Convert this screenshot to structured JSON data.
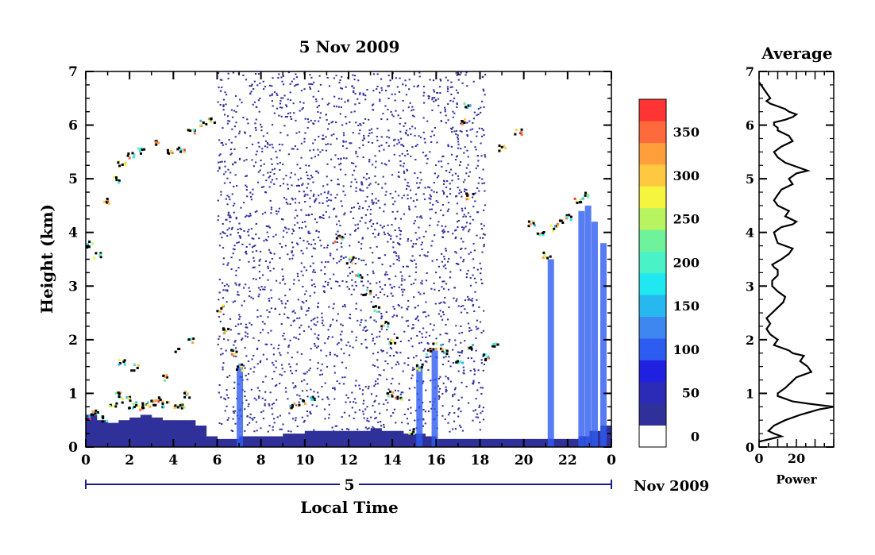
{
  "chart_data": [
    {
      "type": "heatmap",
      "title": "5 Nov 2009",
      "xlabel": "Local Time",
      "ylabel": "Height (km)",
      "xlim": [
        0,
        24
      ],
      "ylim": [
        0,
        7
      ],
      "x_ticks": [
        "0",
        "2",
        "4",
        "6",
        "8",
        "10",
        "12",
        "14",
        "16",
        "18",
        "20",
        "22",
        "0"
      ],
      "y_ticks": [
        "0",
        "1",
        "2",
        "3",
        "4",
        "5",
        "6",
        "7"
      ],
      "date_axis": {
        "day_label": "5",
        "month_label": "Nov 2009"
      },
      "colorbar": {
        "levels": [
          0,
          25,
          50,
          75,
          100,
          125,
          150,
          175,
          200,
          225,
          250,
          275,
          300,
          325,
          350,
          375
        ],
        "colors": [
          "#ffffff",
          "#30309a",
          "#2b2bb8",
          "#2020e0",
          "#2e5cf0",
          "#3f87f0",
          "#27b8ef",
          "#1fe8f0",
          "#4af2c8",
          "#6ff29c",
          "#b8f45f",
          "#f5f540",
          "#ffc840",
          "#ff9f3c",
          "#ff6a3c",
          "#ff3535"
        ],
        "tick_labels": [
          "0",
          "50",
          "100",
          "150",
          "200",
          "250",
          "300",
          "350"
        ],
        "tick_values": [
          0,
          50,
          100,
          150,
          200,
          250,
          300,
          350
        ]
      },
      "layers": [
        {
          "name": "boundary-layer-haze",
          "time": [
            0,
            0.5,
            1,
            1.5,
            2,
            2.5,
            3,
            3.5,
            4,
            4.5,
            5,
            5.5,
            6,
            6.5,
            7,
            7.5,
            8,
            8.5,
            9,
            9.5,
            10,
            10.5,
            11,
            11.5,
            12,
            12.5,
            13,
            13.5,
            14,
            14.5,
            15,
            15.5,
            16,
            16.5,
            17,
            17.5,
            18,
            18.5,
            19,
            19.5,
            20,
            20.5,
            21,
            21.5,
            22,
            22.5,
            23,
            23.5,
            24
          ],
          "height": [
            0.6,
            0.5,
            0.45,
            0.5,
            0.55,
            0.6,
            0.55,
            0.5,
            0.5,
            0.5,
            0.4,
            0.2,
            0.15,
            0.15,
            0.2,
            0.2,
            0.2,
            0.2,
            0.25,
            0.25,
            0.3,
            0.3,
            0.3,
            0.3,
            0.3,
            0.3,
            0.35,
            0.3,
            0.3,
            0.25,
            0.25,
            0.2,
            0.15,
            0.15,
            0.15,
            0.15,
            0.15,
            0.15,
            0.15,
            0.15,
            0.15,
            0.15,
            0.15,
            0.15,
            0.15,
            0.2,
            0.3,
            0.4,
            0.4
          ]
        },
        {
          "name": "lower-cloud",
          "points": [
            [
              0.1,
              0.6
            ],
            [
              0.4,
              0.65
            ],
            [
              0.8,
              0.55
            ],
            [
              1.2,
              0.8
            ],
            [
              1.5,
              1.0
            ],
            [
              1.8,
              0.9
            ],
            [
              2.1,
              0.8
            ],
            [
              2.4,
              0.75
            ],
            [
              2.7,
              0.8
            ],
            [
              3.0,
              0.85
            ],
            [
              3.3,
              0.9
            ],
            [
              3.6,
              0.8
            ],
            [
              4.0,
              0.75
            ],
            [
              4.3,
              0.8
            ],
            [
              4.6,
              1.0
            ],
            [
              1.6,
              1.6
            ],
            [
              2.2,
              1.5
            ],
            [
              3.6,
              1.3
            ],
            [
              4.2,
              1.8
            ],
            [
              4.8,
              2.0
            ],
            [
              6.1,
              2.6
            ],
            [
              6.4,
              2.2
            ],
            [
              6.7,
              1.8
            ],
            [
              7.0,
              1.5
            ],
            [
              9.3,
              0.8
            ],
            [
              9.8,
              0.85
            ],
            [
              10.3,
              0.9
            ],
            [
              13.8,
              1.0
            ],
            [
              14.2,
              0.9
            ],
            [
              14.8,
              0.3
            ],
            [
              15.2,
              1.5
            ],
            [
              15.6,
              1.8
            ],
            [
              16.0,
              1.9
            ],
            [
              16.4,
              1.8
            ],
            [
              17.0,
              1.6
            ],
            [
              17.5,
              1.9
            ],
            [
              18.2,
              1.7
            ],
            [
              18.6,
              1.9
            ]
          ]
        },
        {
          "name": "mid-cloud",
          "points": [
            [
              0.1,
              3.8
            ],
            [
              0.5,
              3.6
            ],
            [
              0.9,
              4.6
            ],
            [
              1.3,
              5.0
            ],
            [
              1.6,
              5.3
            ],
            [
              2.0,
              5.45
            ],
            [
              2.5,
              5.55
            ],
            [
              3.2,
              5.7
            ],
            [
              3.8,
              5.55
            ],
            [
              4.3,
              5.55
            ],
            [
              4.8,
              5.9
            ],
            [
              5.3,
              6.05
            ],
            [
              5.7,
              6.1
            ],
            [
              11.5,
              3.9
            ],
            [
              12.0,
              3.5
            ],
            [
              12.4,
              3.2
            ],
            [
              12.8,
              2.9
            ],
            [
              13.2,
              2.6
            ],
            [
              13.6,
              2.3
            ],
            [
              14.0,
              2.0
            ],
            [
              17.1,
              6.1
            ],
            [
              17.4,
              6.4
            ],
            [
              17.5,
              4.7
            ],
            [
              19.0,
              5.6
            ],
            [
              19.7,
              5.9
            ],
            [
              20.3,
              4.2
            ],
            [
              20.7,
              4.0
            ],
            [
              21.0,
              3.6
            ],
            [
              21.3,
              4.1
            ],
            [
              21.6,
              4.2
            ],
            [
              22.0,
              4.3
            ],
            [
              22.4,
              4.6
            ],
            [
              22.8,
              4.7
            ]
          ]
        }
      ]
    },
    {
      "type": "line",
      "title": "Average",
      "xlabel": "Power",
      "ylabel": "",
      "xlim": [
        0,
        40
      ],
      "ylim": [
        0,
        7
      ],
      "x_ticks": [
        "0",
        "20"
      ],
      "x_tick_values": [
        0,
        20
      ],
      "y_ticks": [
        "0",
        "1",
        "2",
        "3",
        "4",
        "5",
        "6",
        "7"
      ],
      "series": [
        {
          "x": [
            0,
            6,
            12,
            8,
            5,
            8,
            14,
            22,
            32,
            40,
            28,
            18,
            14,
            10,
            10,
            14,
            17,
            20,
            24,
            28,
            26,
            22,
            24,
            18,
            16,
            12,
            8,
            10,
            6,
            4,
            6,
            4,
            7,
            10,
            13,
            14,
            10,
            7,
            7,
            10,
            10,
            8,
            7,
            12,
            16,
            18,
            14,
            10,
            9,
            8,
            10,
            12,
            18,
            20,
            14,
            16,
            10,
            8,
            10,
            12,
            18,
            16,
            20,
            26,
            22,
            14,
            10,
            8,
            12,
            18,
            16,
            10,
            10,
            8,
            8,
            14,
            18,
            20,
            16,
            14,
            10,
            6,
            4,
            6,
            4,
            2,
            0
          ],
          "y": [
            0.1,
            0.15,
            0.2,
            0.25,
            0.3,
            0.4,
            0.5,
            0.6,
            0.7,
            0.75,
            0.8,
            0.85,
            0.9,
            0.95,
            1.0,
            1.1,
            1.2,
            1.3,
            1.35,
            1.4,
            1.5,
            1.6,
            1.7,
            1.75,
            1.8,
            1.85,
            1.9,
            2.0,
            2.1,
            2.2,
            2.3,
            2.4,
            2.5,
            2.6,
            2.7,
            2.8,
            2.9,
            3.0,
            3.1,
            3.2,
            3.3,
            3.35,
            3.4,
            3.5,
            3.6,
            3.7,
            3.75,
            3.8,
            3.9,
            4.0,
            4.05,
            4.1,
            4.15,
            4.2,
            4.3,
            4.4,
            4.5,
            4.6,
            4.7,
            4.8,
            4.9,
            5.0,
            5.1,
            5.15,
            5.2,
            5.3,
            5.4,
            5.5,
            5.6,
            5.7,
            5.8,
            5.9,
            5.95,
            6.0,
            6.05,
            6.1,
            6.15,
            6.2,
            6.25,
            6.3,
            6.35,
            6.4,
            6.45,
            6.5,
            6.6,
            6.7,
            6.8
          ]
        }
      ]
    }
  ]
}
